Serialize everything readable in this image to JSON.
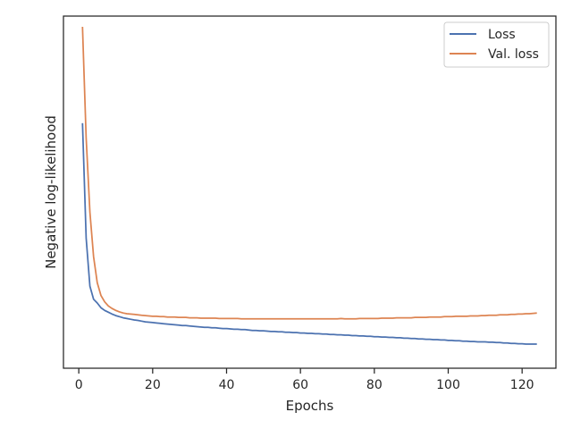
{
  "chart_data": {
    "type": "line",
    "title": "",
    "xlabel": "Epochs",
    "ylabel": "Negative log-likelihood",
    "xlim": [
      -4.15,
      129.15
    ],
    "xticks": [
      0,
      20,
      40,
      60,
      80,
      100,
      120
    ],
    "xtick_labels": [
      "0",
      "20",
      "40",
      "60",
      "80",
      "100",
      "120"
    ],
    "y_tick_labels_shown": false,
    "grid": false,
    "legend_position": "top-right",
    "series": [
      {
        "name": "Loss",
        "color": "#4c72b0",
        "x": [
          1,
          2,
          3,
          4,
          5,
          6,
          7,
          8,
          9,
          10,
          11,
          12,
          13,
          14,
          15,
          16,
          17,
          18,
          19,
          20,
          21,
          22,
          23,
          24,
          25,
          26,
          27,
          28,
          29,
          30,
          31,
          32,
          33,
          34,
          35,
          36,
          37,
          38,
          39,
          40,
          41,
          42,
          43,
          44,
          45,
          46,
          47,
          48,
          49,
          50,
          51,
          52,
          53,
          54,
          55,
          56,
          57,
          58,
          59,
          60,
          61,
          62,
          63,
          64,
          65,
          66,
          67,
          68,
          69,
          70,
          71,
          72,
          73,
          74,
          75,
          76,
          77,
          78,
          79,
          80,
          81,
          82,
          83,
          84,
          85,
          86,
          87,
          88,
          89,
          90,
          91,
          92,
          93,
          94,
          95,
          96,
          97,
          98,
          99,
          100,
          101,
          102,
          103,
          104,
          105,
          106,
          107,
          108,
          109,
          110,
          111,
          112,
          113,
          114,
          115,
          116,
          117,
          118,
          119,
          120,
          121,
          122,
          123,
          124
        ],
        "values": [
          0.74,
          0.43,
          0.3,
          0.265,
          0.255,
          0.242,
          0.235,
          0.23,
          0.225,
          0.221,
          0.218,
          0.215,
          0.213,
          0.211,
          0.209,
          0.208,
          0.206,
          0.204,
          0.203,
          0.202,
          0.201,
          0.2,
          0.199,
          0.198,
          0.197,
          0.196,
          0.195,
          0.194,
          0.194,
          0.193,
          0.192,
          0.191,
          0.19,
          0.189,
          0.189,
          0.188,
          0.188,
          0.187,
          0.186,
          0.186,
          0.185,
          0.184,
          0.184,
          0.183,
          0.183,
          0.182,
          0.181,
          0.181,
          0.18,
          0.18,
          0.179,
          0.178,
          0.178,
          0.177,
          0.177,
          0.176,
          0.176,
          0.175,
          0.175,
          0.174,
          0.174,
          0.173,
          0.173,
          0.172,
          0.172,
          0.171,
          0.171,
          0.17,
          0.17,
          0.169,
          0.169,
          0.168,
          0.168,
          0.167,
          0.167,
          0.166,
          0.166,
          0.165,
          0.165,
          0.164,
          0.164,
          0.163,
          0.163,
          0.162,
          0.162,
          0.161,
          0.161,
          0.16,
          0.16,
          0.159,
          0.159,
          0.158,
          0.158,
          0.157,
          0.157,
          0.156,
          0.156,
          0.155,
          0.155,
          0.154,
          0.154,
          0.153,
          0.153,
          0.152,
          0.152,
          0.151,
          0.151,
          0.15,
          0.15,
          0.15,
          0.149,
          0.149,
          0.148,
          0.148,
          0.147,
          0.147,
          0.146,
          0.146,
          0.145,
          0.145,
          0.144,
          0.144,
          0.144,
          0.144
        ]
      },
      {
        "name": "Val. loss",
        "color": "#dd8452",
        "x": [
          1,
          2,
          3,
          4,
          5,
          6,
          7,
          8,
          9,
          10,
          11,
          12,
          13,
          14,
          15,
          16,
          17,
          18,
          19,
          20,
          21,
          22,
          23,
          24,
          25,
          26,
          27,
          28,
          29,
          30,
          31,
          32,
          33,
          34,
          35,
          36,
          37,
          38,
          39,
          40,
          41,
          42,
          43,
          44,
          45,
          46,
          47,
          48,
          49,
          50,
          51,
          52,
          53,
          54,
          55,
          56,
          57,
          58,
          59,
          60,
          61,
          62,
          63,
          64,
          65,
          66,
          67,
          68,
          69,
          70,
          71,
          72,
          73,
          74,
          75,
          76,
          77,
          78,
          79,
          80,
          81,
          82,
          83,
          84,
          85,
          86,
          87,
          88,
          89,
          90,
          91,
          92,
          93,
          94,
          95,
          96,
          97,
          98,
          99,
          100,
          101,
          102,
          103,
          104,
          105,
          106,
          107,
          108,
          109,
          110,
          111,
          112,
          113,
          114,
          115,
          116,
          117,
          118,
          119,
          120,
          121,
          122,
          123,
          124
        ],
        "values": [
          1.0,
          0.7,
          0.5,
          0.38,
          0.31,
          0.275,
          0.258,
          0.247,
          0.24,
          0.235,
          0.231,
          0.228,
          0.226,
          0.225,
          0.224,
          0.223,
          0.222,
          0.221,
          0.22,
          0.219,
          0.219,
          0.218,
          0.218,
          0.217,
          0.217,
          0.217,
          0.216,
          0.216,
          0.216,
          0.215,
          0.215,
          0.215,
          0.214,
          0.214,
          0.214,
          0.214,
          0.214,
          0.213,
          0.213,
          0.213,
          0.213,
          0.213,
          0.213,
          0.212,
          0.212,
          0.212,
          0.212,
          0.212,
          0.212,
          0.212,
          0.212,
          0.212,
          0.212,
          0.212,
          0.212,
          0.212,
          0.212,
          0.212,
          0.212,
          0.212,
          0.212,
          0.212,
          0.212,
          0.212,
          0.212,
          0.212,
          0.212,
          0.212,
          0.212,
          0.212,
          0.213,
          0.212,
          0.212,
          0.212,
          0.212,
          0.213,
          0.213,
          0.213,
          0.213,
          0.213,
          0.213,
          0.214,
          0.214,
          0.214,
          0.214,
          0.215,
          0.215,
          0.215,
          0.215,
          0.215,
          0.216,
          0.216,
          0.216,
          0.216,
          0.217,
          0.217,
          0.217,
          0.217,
          0.218,
          0.218,
          0.218,
          0.219,
          0.219,
          0.219,
          0.219,
          0.22,
          0.22,
          0.22,
          0.221,
          0.221,
          0.222,
          0.222,
          0.222,
          0.223,
          0.223,
          0.223,
          0.224,
          0.224,
          0.225,
          0.225,
          0.226,
          0.226,
          0.227,
          0.228
        ]
      }
    ]
  }
}
